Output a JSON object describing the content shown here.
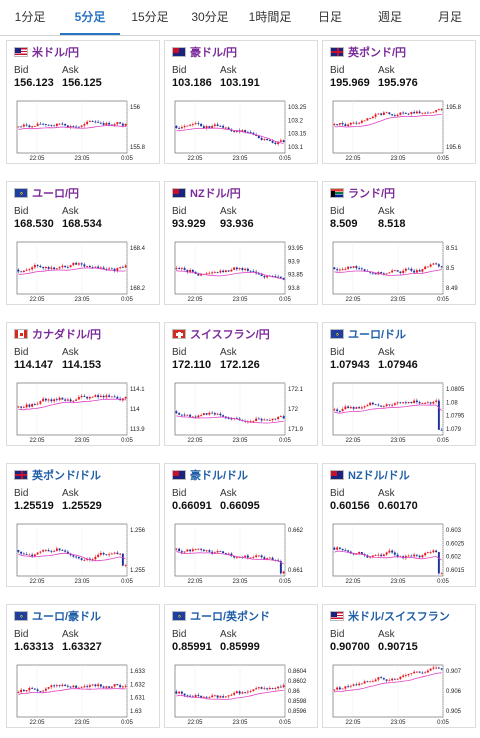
{
  "tabs": [
    "1分足",
    "5分足",
    "15分足",
    "30分足",
    "1時間足",
    "日足",
    "週足",
    "月足"
  ],
  "active_tab": 1,
  "labels": {
    "bid": "Bid",
    "ask": "Ask"
  },
  "x_ticks": [
    "22:05",
    "23:05",
    "0:05"
  ],
  "colors": {
    "up": "#e8141c",
    "down": "#1d2f9e",
    "ma": "#e040c8",
    "line": "#2060c0"
  },
  "pairs": [
    {
      "name": "米ドル/円",
      "bid": "156.123",
      "ask": "156.125",
      "flag": "us",
      "y_ticks": [
        "156",
        "155.8"
      ]
    },
    {
      "name": "豪ドル/円",
      "bid": "103.186",
      "ask": "103.191",
      "flag": "au",
      "y_ticks": [
        "103.25",
        "103.2",
        "103.15",
        "103.1"
      ]
    },
    {
      "name": "英ポンド/円",
      "bid": "195.969",
      "ask": "195.976",
      "flag": "gb",
      "y_ticks": [
        "195.8",
        "195.6"
      ]
    },
    {
      "name": "ユーロ/円",
      "bid": "168.530",
      "ask": "168.534",
      "flag": "eu",
      "y_ticks": [
        "168.4",
        "168.2"
      ]
    },
    {
      "name": "NZドル/円",
      "bid": "93.929",
      "ask": "93.936",
      "flag": "nz",
      "y_ticks": [
        "93.95",
        "93.9",
        "93.85",
        "93.8"
      ]
    },
    {
      "name": "ランド/円",
      "bid": "8.509",
      "ask": "8.518",
      "flag": "za",
      "y_ticks": [
        "8.51",
        "8.5",
        "8.49"
      ]
    },
    {
      "name": "カナダドル/円",
      "bid": "114.147",
      "ask": "114.153",
      "flag": "ca",
      "y_ticks": [
        "114.1",
        "114",
        "113.9"
      ]
    },
    {
      "name": "スイスフラン/円",
      "bid": "172.110",
      "ask": "172.126",
      "flag": "ch",
      "y_ticks": [
        "172.1",
        "172",
        "171.9"
      ]
    },
    {
      "name": "ユーロ/ドル",
      "bid": "1.07943",
      "ask": "1.07946",
      "flag": "eu",
      "y_ticks": [
        "1.0805",
        "1.08",
        "1.0795",
        "1.079"
      ]
    },
    {
      "name": "英ポンド/ドル",
      "bid": "1.25519",
      "ask": "1.25529",
      "flag": "gb",
      "y_ticks": [
        "1.256",
        "1.255"
      ]
    },
    {
      "name": "豪ドル/ドル",
      "bid": "0.66091",
      "ask": "0.66095",
      "flag": "au",
      "y_ticks": [
        "0.662",
        "0.661"
      ]
    },
    {
      "name": "NZドル/ドル",
      "bid": "0.60156",
      "ask": "0.60170",
      "flag": "nz",
      "y_ticks": [
        "0.603",
        "0.6025",
        "0.602",
        "0.6015"
      ]
    },
    {
      "name": "ユーロ/豪ドル",
      "bid": "1.63313",
      "ask": "1.63327",
      "flag": "eu",
      "y_ticks": [
        "1.633",
        "1.632",
        "1.631",
        "1.63"
      ]
    },
    {
      "name": "ユーロ/英ポンド",
      "bid": "0.85991",
      "ask": "0.85999",
      "flag": "eu",
      "y_ticks": [
        "0.8604",
        "0.8602",
        "0.86",
        "0.8598",
        "0.8596"
      ]
    },
    {
      "name": "米ドル/スイスフラン",
      "bid": "0.90700",
      "ask": "0.90715",
      "flag": "us",
      "y_ticks": [
        "0.907",
        "0.906",
        "0.905"
      ]
    }
  ]
}
